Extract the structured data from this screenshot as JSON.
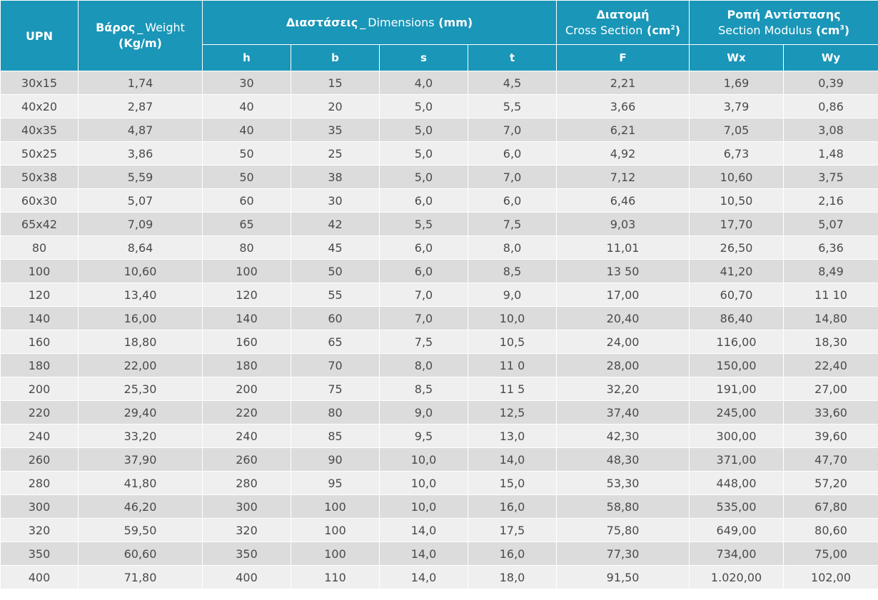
{
  "header": {
    "upn": "UPN",
    "weight_gr": "Βάρος",
    "weight_en": "Weight",
    "weight_unit": "(Kg/m)",
    "dims_gr": "Διαστάσεις",
    "dims_en": "Dimensions",
    "dims_unit": "(mm)",
    "cross_gr": "Διατομή",
    "cross_en": "Cross Section",
    "cross_unit": "(cm",
    "cross_sup": "2",
    "cross_close": ")",
    "mod_gr": "Ροπή Αντίστασης",
    "mod_en": "Section Modulus",
    "mod_unit": "(cm",
    "mod_sup": "3",
    "mod_close": ")",
    "sep": "_",
    "h": "h",
    "b": "b",
    "s": "s",
    "t": "t",
    "F": "F",
    "Wx": "Wx",
    "Wy": "Wy"
  },
  "rows": [
    [
      "30x15",
      "1,74",
      "30",
      "15",
      "4,0",
      "4,5",
      "2,21",
      "1,69",
      "0,39"
    ],
    [
      "40x20",
      "2,87",
      "40",
      "20",
      "5,0",
      "5,5",
      "3,66",
      "3,79",
      "0,86"
    ],
    [
      "40x35",
      "4,87",
      "40",
      "35",
      "5,0",
      "7,0",
      "6,21",
      "7,05",
      "3,08"
    ],
    [
      "50x25",
      "3,86",
      "50",
      "25",
      "5,0",
      "6,0",
      "4,92",
      "6,73",
      "1,48"
    ],
    [
      "50x38",
      "5,59",
      "50",
      "38",
      "5,0",
      "7,0",
      "7,12",
      "10,60",
      "3,75"
    ],
    [
      "60x30",
      "5,07",
      "60",
      "30",
      "6,0",
      "6,0",
      "6,46",
      "10,50",
      "2,16"
    ],
    [
      "65x42",
      "7,09",
      "65",
      "42",
      "5,5",
      "7,5",
      "9,03",
      "17,70",
      "5,07"
    ],
    [
      "80",
      "8,64",
      "80",
      "45",
      "6,0",
      "8,0",
      "11,01",
      "26,50",
      "6,36"
    ],
    [
      "100",
      "10,60",
      "100",
      "50",
      "6,0",
      "8,5",
      "13 50",
      "41,20",
      "8,49"
    ],
    [
      "120",
      "13,40",
      "120",
      "55",
      "7,0",
      "9,0",
      "17,00",
      "60,70",
      "11 10"
    ],
    [
      "140",
      "16,00",
      "140",
      "60",
      "7,0",
      "10,0",
      "20,40",
      "86,40",
      "14,80"
    ],
    [
      "160",
      "18,80",
      "160",
      "65",
      "7,5",
      "10,5",
      "24,00",
      "116,00",
      "18,30"
    ],
    [
      "180",
      "22,00",
      "180",
      "70",
      "8,0",
      "11 0",
      "28,00",
      "150,00",
      "22,40"
    ],
    [
      "200",
      "25,30",
      "200",
      "75",
      "8,5",
      "11 5",
      "32,20",
      "191,00",
      "27,00"
    ],
    [
      "220",
      "29,40",
      "220",
      "80",
      "9,0",
      "12,5",
      "37,40",
      "245,00",
      "33,60"
    ],
    [
      "240",
      "33,20",
      "240",
      "85",
      "9,5",
      "13,0",
      "42,30",
      "300,00",
      "39,60"
    ],
    [
      "260",
      "37,90",
      "260",
      "90",
      "10,0",
      "14,0",
      "48,30",
      "371,00",
      "47,70"
    ],
    [
      "280",
      "41,80",
      "280",
      "95",
      "10,0",
      "15,0",
      "53,30",
      "448,00",
      "57,20"
    ],
    [
      "300",
      "46,20",
      "300",
      "100",
      "10,0",
      "16,0",
      "58,80",
      "535,00",
      "67,80"
    ],
    [
      "320",
      "59,50",
      "320",
      "100",
      "14,0",
      "17,5",
      "75,80",
      "649,00",
      "80,60"
    ],
    [
      "350",
      "60,60",
      "350",
      "100",
      "14,0",
      "16,0",
      "77,30",
      "734,00",
      "75,00"
    ],
    [
      "400",
      "71,80",
      "400",
      "110",
      "14,0",
      "18,0",
      "91,50",
      "1.020,00",
      "102,00"
    ]
  ],
  "colors": {
    "header_bg": "#1a96b8",
    "row_odd": "#dcdcdc",
    "row_even": "#efefef",
    "text": "#4a4a4a"
  }
}
